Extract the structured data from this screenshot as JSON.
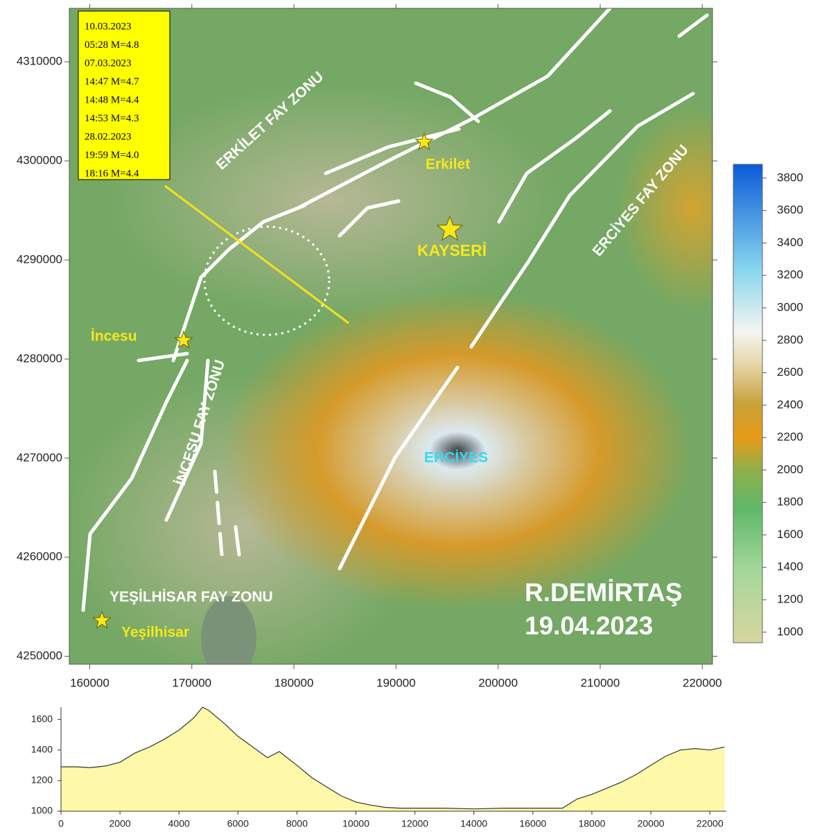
{
  "map": {
    "xlim": [
      158000,
      221000
    ],
    "ylim": [
      4249200,
      4315400
    ],
    "xticks": [
      160000,
      170000,
      180000,
      190000,
      200000,
      210000,
      220000
    ],
    "yticks": [
      4250000,
      4260000,
      4270000,
      4280000,
      4290000,
      4300000,
      4310000
    ],
    "events": [
      "10.03.2023",
      "05:28 M=4.8",
      "07.03.2023",
      "14:47 M=4.7",
      "14:48 M=4.4",
      "14:53 M=4.3",
      "28.02.2023",
      "19:59 M=4.0",
      "18:16 M=4.4"
    ],
    "places": [
      "Erkilet",
      "KAYSERİ",
      "İncesu",
      "Yeşilhisar",
      "ERCİYES"
    ],
    "faults": [
      "ERKİLET FAY ZONU",
      "ERCİYES FAY ZONU",
      "İNCESU FAY ZONU",
      "YEŞİLHİSAR FAY ZONU"
    ],
    "credit": [
      "R.DEMİRTAŞ",
      "19.04.2023"
    ]
  },
  "colorbar": {
    "lim": [
      935,
      3885
    ],
    "ticks": [
      1000,
      1200,
      1400,
      1600,
      1800,
      2000,
      2200,
      2400,
      2600,
      2800,
      3000,
      3200,
      3400,
      3600,
      3800
    ]
  },
  "chart_data": {
    "type": "area",
    "color": "#fdf9a8",
    "x": [
      0,
      500,
      1000,
      1500,
      2000,
      2500,
      3000,
      3500,
      4000,
      4500,
      4800,
      5000,
      5500,
      6000,
      6500,
      7000,
      7400,
      8000,
      8500,
      9000,
      9500,
      10000,
      10500,
      11000,
      11500,
      12000,
      13000,
      14000,
      15000,
      16000,
      17000,
      17500,
      18000,
      18500,
      19000,
      19500,
      20000,
      20500,
      21000,
      21500,
      22000,
      22500
    ],
    "values": [
      1290,
      1290,
      1285,
      1295,
      1320,
      1380,
      1420,
      1470,
      1530,
      1610,
      1680,
      1660,
      1580,
      1490,
      1420,
      1350,
      1390,
      1300,
      1220,
      1160,
      1100,
      1060,
      1040,
      1025,
      1020,
      1020,
      1020,
      1015,
      1020,
      1020,
      1020,
      1080,
      1110,
      1150,
      1190,
      1240,
      1300,
      1360,
      1400,
      1410,
      1400,
      1420
    ],
    "xlim": [
      0,
      22560
    ],
    "ylim": [
      1000,
      1680
    ],
    "xticks": [
      0,
      2000,
      4000,
      6000,
      8000,
      10000,
      12000,
      14000,
      16000,
      18000,
      20000,
      22000
    ],
    "yticks": [
      1000,
      1200,
      1400,
      1600
    ]
  }
}
